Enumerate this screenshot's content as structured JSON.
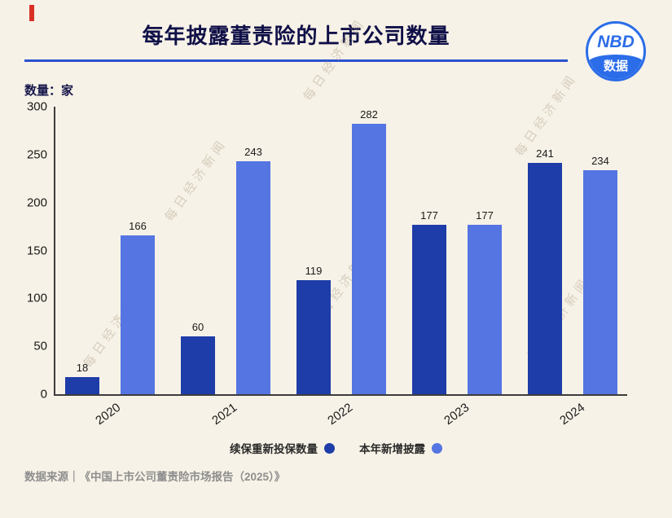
{
  "header": {
    "logo": {
      "line1": "NBD",
      "line2": "数据"
    }
  },
  "watermark": {
    "text": "每日经济新闻"
  },
  "chart_data": {
    "type": "bar",
    "title": "每年披露董责险的上市公司数量",
    "ylabel": "数量：家",
    "xlabel": "",
    "categories": [
      "2020",
      "2021",
      "2022",
      "2023",
      "2024"
    ],
    "series": [
      {
        "name": "续保重新投保数量",
        "color": "#1e3da8",
        "values": [
          18,
          60,
          119,
          177,
          241
        ]
      },
      {
        "name": "本年新增披露",
        "color": "#5575e2",
        "values": [
          166,
          243,
          282,
          177,
          234
        ]
      }
    ],
    "ylim": [
      0,
      300
    ],
    "ytick_step": 50,
    "grid": false,
    "legend_position": "bottom"
  },
  "footer": {
    "source": "数据来源｜《中国上市公司董责险市场报告（2025）》"
  },
  "accent_colors": {
    "title": "#101048",
    "rule": "#2a52d0",
    "logo_blue": "#2b6de8",
    "corner_red": "#d93025"
  }
}
